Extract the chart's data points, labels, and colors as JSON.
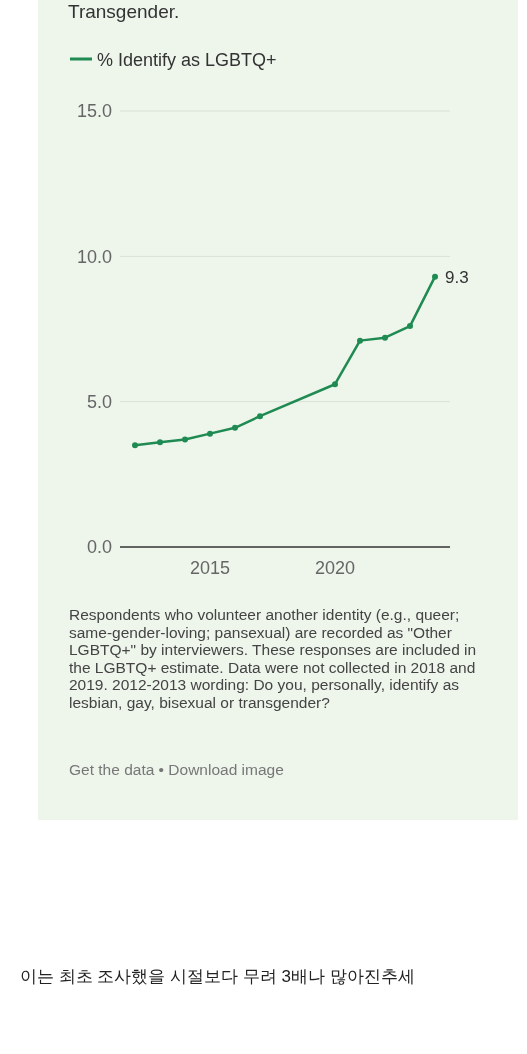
{
  "chart_data": {
    "type": "line",
    "subtitle": "Transgender.",
    "x": [
      2012,
      2013,
      2014,
      2015,
      2016,
      2017,
      2020,
      2021,
      2022,
      2023,
      2024
    ],
    "series": [
      {
        "name": "% Identify as LGBTQ+",
        "color": "#1f8a52",
        "values": [
          3.5,
          3.6,
          3.7,
          3.9,
          4.1,
          4.5,
          5.6,
          7.1,
          7.2,
          7.6,
          9.3
        ],
        "value_labels": [
          null,
          null,
          null,
          null,
          null,
          null,
          null,
          null,
          null,
          null,
          "9.3"
        ]
      }
    ],
    "xlim": [
      2011.4,
      2024.6
    ],
    "xticks": [
      2015,
      2020
    ],
    "ylim": [
      0,
      15
    ],
    "yticks": [
      {
        "value": 0,
        "label": "0.0"
      },
      {
        "value": 5,
        "label": "5.0"
      },
      {
        "value": 10,
        "label": "10.0"
      },
      {
        "value": 15,
        "label": "15.0"
      }
    ],
    "grid": "y",
    "legend": "top left",
    "marker": "circle",
    "line_style": "solid",
    "annotations": [
      "Respondents who volunteer another identity (e.g., queer; same-gender-loving; pansexual) are recorded as \"Other LGBTQ+\" by interviewers. These responses are included in the LGBTQ+ estimate. Data were not collected in 2018 and 2019. 2012-2013 wording: Do you, personally, identify as lesbian, gay, bisexual or transgender?",
      "Get the data • Download image",
      "이는 최초 조사했을 시절보다 무려 3배나 많아진추세"
    ]
  }
}
